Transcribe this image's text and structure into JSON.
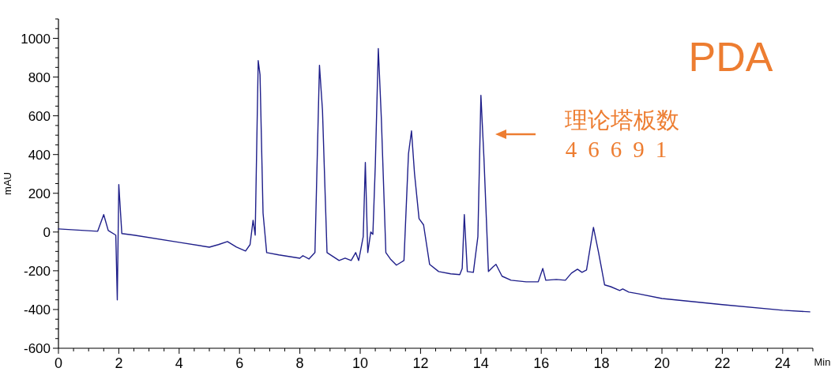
{
  "chart_data": {
    "type": "line",
    "xlabel": "Min",
    "ylabel": "mAU",
    "annotations": [
      "PDA",
      "理论塔板数",
      "46691"
    ],
    "xlim": [
      0,
      25
    ],
    "ylim": [
      -600,
      1100
    ],
    "xticks": [
      0,
      {
        "value": 0.5,
        "label": null
      },
      {
        "value": 1,
        "label": null
      },
      {
        "value": 1.5,
        "label": null
      },
      2,
      {
        "value": 2.5,
        "label": null
      },
      {
        "value": 3,
        "label": null
      },
      {
        "value": 3.5,
        "label": null
      },
      4,
      {
        "value": 4.5,
        "label": null
      },
      {
        "value": 5,
        "label": null
      },
      {
        "value": 5.5,
        "label": null
      },
      6,
      {
        "value": 6.5,
        "label": null
      },
      {
        "value": 7,
        "label": null
      },
      {
        "value": 7.5,
        "label": null
      },
      8,
      {
        "value": 8.5,
        "label": null
      },
      {
        "value": 9,
        "label": null
      },
      {
        "value": 9.5,
        "label": null
      },
      10,
      {
        "value": 10.5,
        "label": null
      },
      {
        "value": 11,
        "label": null
      },
      {
        "value": 11.5,
        "label": null
      },
      12,
      {
        "value": 12.5,
        "label": null
      },
      {
        "value": 13,
        "label": null
      },
      {
        "value": 13.5,
        "label": null
      },
      14,
      {
        "value": 14.5,
        "label": null
      },
      {
        "value": 15,
        "label": null
      },
      {
        "value": 15.5,
        "label": null
      },
      16,
      {
        "value": 16.5,
        "label": null
      },
      {
        "value": 17,
        "label": null
      },
      {
        "value": 17.5,
        "label": null
      },
      18,
      {
        "value": 18.5,
        "label": null
      },
      {
        "value": 19,
        "label": null
      },
      {
        "value": 19.5,
        "label": null
      },
      20,
      {
        "value": 20.5,
        "label": null
      },
      {
        "value": 21,
        "label": null
      },
      {
        "value": 21.5,
        "label": null
      },
      22,
      {
        "value": 22.5,
        "label": null
      },
      {
        "value": 23,
        "label": null
      },
      {
        "value": 23.5,
        "label": null
      },
      24,
      {
        "value": 24.5,
        "label": null
      },
      {
        "value": 25,
        "label": null
      }
    ],
    "yticks": [
      -600,
      {
        "value": -550,
        "label": null
      },
      {
        "value": -500,
        "label": null
      },
      {
        "value": -450,
        "label": null
      },
      -400,
      {
        "value": -350,
        "label": null
      },
      {
        "value": -300,
        "label": null
      },
      {
        "value": -250,
        "label": null
      },
      -200,
      {
        "value": -150,
        "label": null
      },
      {
        "value": -100,
        "label": null
      },
      {
        "value": -50,
        "label": null
      },
      0,
      {
        "value": 50,
        "label": null
      },
      {
        "value": 100,
        "label": null
      },
      {
        "value": 150,
        "label": null
      },
      200,
      {
        "value": 250,
        "label": null
      },
      {
        "value": 300,
        "label": null
      },
      {
        "value": 350,
        "label": null
      },
      400,
      {
        "value": 450,
        "label": null
      },
      {
        "value": 500,
        "label": null
      },
      {
        "value": 550,
        "label": null
      },
      600,
      {
        "value": 650,
        "label": null
      },
      {
        "value": 700,
        "label": null
      },
      {
        "value": 750,
        "label": null
      },
      800,
      {
        "value": 850,
        "label": null
      },
      {
        "value": 900,
        "label": null
      },
      {
        "value": 950,
        "label": null
      },
      1000,
      {
        "value": 1050,
        "label": null
      },
      {
        "value": 1100,
        "label": null
      }
    ],
    "grid": false,
    "marker": "none",
    "line_style": "solid",
    "series": [
      {
        "color": "#1f1f8a",
        "x": [
          0,
          1.3,
          1.5,
          1.65,
          1.9,
          1.95,
          2.0,
          2.1,
          2.5,
          4,
          5.0,
          5.3,
          5.6,
          5.9,
          6.2,
          6.35,
          6.45,
          6.52,
          6.62,
          6.68,
          6.78,
          6.9,
          7.3,
          8.0,
          8.1,
          8.3,
          8.5,
          8.65,
          8.75,
          8.9,
          9.3,
          9.5,
          9.7,
          9.85,
          9.95,
          10.1,
          10.17,
          10.25,
          10.35,
          10.42,
          10.5,
          10.6,
          10.7,
          10.85,
          11.0,
          11.2,
          11.45,
          11.6,
          11.7,
          11.8,
          11.95,
          12.1,
          12.3,
          12.6,
          13.0,
          13.3,
          13.38,
          13.45,
          13.55,
          13.75,
          13.9,
          14.0,
          14.1,
          14.25,
          14.4,
          14.5,
          14.7,
          15.0,
          15.5,
          15.9,
          16.05,
          16.15,
          16.5,
          16.8,
          17.0,
          17.2,
          17.35,
          17.5,
          17.73,
          17.9,
          18.1,
          18.3,
          18.6,
          18.7,
          18.9,
          19.2,
          20,
          22,
          24,
          24.9
        ],
        "values": [
          16,
          4,
          90,
          8,
          -16,
          -350,
          245,
          -8,
          -16,
          -53,
          -78,
          -65,
          -49,
          -78,
          -98,
          -65,
          61,
          -16,
          885,
          812,
          98,
          -106,
          -118,
          -135,
          -122,
          -139,
          -106,
          861,
          628,
          -106,
          -147,
          -135,
          -147,
          -106,
          -147,
          -24,
          359,
          -106,
          0,
          -12,
          343,
          947,
          588,
          -106,
          -139,
          -171,
          -147,
          404,
          522,
          302,
          69,
          37,
          -167,
          -204,
          -216,
          -220,
          -188,
          90,
          -204,
          -208,
          -24,
          706,
          384,
          -204,
          -180,
          -167,
          -228,
          -249,
          -257,
          -257,
          -188,
          -249,
          -245,
          -249,
          -212,
          -192,
          -208,
          -196,
          24,
          -106,
          -273,
          -282,
          -302,
          -294,
          -310,
          -318,
          -343,
          -375,
          -404,
          -412
        ]
      }
    ]
  }
}
